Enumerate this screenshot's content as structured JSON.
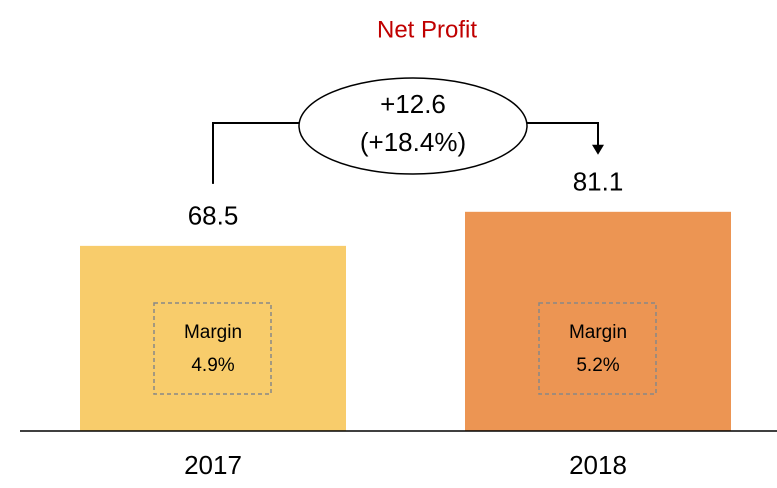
{
  "chart_data": {
    "type": "bar",
    "title": "Net Profit",
    "categories": [
      "2017",
      "2018"
    ],
    "values": [
      68.5,
      81.1
    ],
    "colors": [
      "#f8cc6b",
      "#ec9553"
    ],
    "ylim": [
      0,
      148
    ],
    "margins": {
      "label": "Margin",
      "values": [
        4.9,
        5.2
      ],
      "value_labels": [
        "4.9%",
        "5.2%"
      ]
    },
    "change": {
      "value": 12.6,
      "label": "+12.6",
      "percent": 18.4,
      "percent_label": "(+18.4%)"
    }
  }
}
